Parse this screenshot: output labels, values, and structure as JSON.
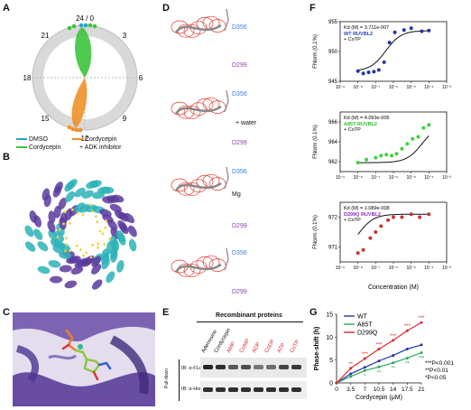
{
  "panels": {
    "A": "A",
    "B": "B",
    "C": "C",
    "D": "D",
    "E": "E",
    "F": "F",
    "G": "G"
  },
  "panelA": {
    "clock_labels": [
      "24 / 0",
      "3",
      "6",
      "9",
      "12",
      "15",
      "18",
      "21"
    ],
    "legend": [
      {
        "label": "DMSO",
        "color": "#29a3c9"
      },
      {
        "label": "Cordycepin",
        "color": "#3cc43c"
      },
      {
        "label": "Cordycepin",
        "color": "#f0902a"
      },
      {
        "label": "+ ADK inhibitor",
        "color": ""
      }
    ]
  },
  "panelD": {
    "labels": [
      "D356",
      "D299",
      "D356",
      "water",
      "D299",
      "D356",
      "Mg",
      "D299",
      "D356",
      "D299"
    ]
  },
  "panelE": {
    "title": "Recombinant proteins",
    "lanes": [
      "Adenosine",
      "Cordycepin",
      "AMP",
      "CoMP",
      "ADP",
      "CoDP",
      "ATP",
      "CoTP"
    ],
    "lane_colors": [
      "#111111",
      "#111111",
      "#d62b2b",
      "#d62b2b",
      "#d62b2b",
      "#d62b2b",
      "#d62b2b",
      "#d62b2b"
    ],
    "row_labels": [
      "IB: α-FLAG",
      "IB: α-His"
    ],
    "side_label": "Pull-down"
  },
  "panelF": {
    "plots": [
      {
        "kd": "Kd (M) = 3.711e-007",
        "name": "WT RUVBL2",
        "name_color": "#2b3fbf",
        "cond": "+ CoTP",
        "ylim": [
          945,
          955
        ],
        "yticks": [
          "955",
          "950",
          "945"
        ],
        "points": [
          [
            1e-08,
            946.7
          ],
          [
            2e-08,
            946.3
          ],
          [
            4e-08,
            946.5
          ],
          [
            8e-08,
            946.6
          ],
          [
            1.5e-07,
            946.9
          ],
          [
            3e-07,
            948.2
          ],
          [
            6e-07,
            951.5
          ],
          [
            1.2e-06,
            953.2
          ],
          [
            4e-06,
            953.6
          ],
          [
            1e-05,
            953.9
          ],
          [
            4e-05,
            953.4
          ],
          [
            0.0001,
            953.5
          ]
        ],
        "color": "#2436a8"
      },
      {
        "kd": "Kd (M) = 4.093e-005",
        "name": "A85T RUVBL2",
        "name_color": "#2bbf2b",
        "cond": "+ CoTP",
        "ylim": [
          961,
          967
        ],
        "yticks": [
          "966",
          "964",
          "962"
        ],
        "points": [
          [
            1e-08,
            961.9
          ],
          [
            3e-08,
            962.2
          ],
          [
            1e-07,
            962.4
          ],
          [
            2e-07,
            962.6
          ],
          [
            4e-07,
            962.7
          ],
          [
            8e-07,
            962.6
          ],
          [
            1.5e-06,
            962.8
          ],
          [
            3e-06,
            963.3
          ],
          [
            6e-06,
            963.8
          ],
          [
            1.2e-05,
            964.3
          ],
          [
            2.5e-05,
            964.5
          ],
          [
            5e-05,
            965.4
          ],
          [
            0.0001,
            965.7
          ]
        ],
        "color": "#3cd03c"
      },
      {
        "kd": "Kd (M) = 1.089e-008",
        "name": "D299Q RUVBL2",
        "name_color": "#8a2bbf",
        "cond": "+ CoTP",
        "ylim": [
          970.5,
          972.5
        ],
        "yticks": [
          "972",
          "971"
        ],
        "points": [
          [
            1e-08,
            970.8
          ],
          [
            2e-08,
            970.9
          ],
          [
            5e-08,
            971.3
          ],
          [
            1e-07,
            971.5
          ],
          [
            2e-07,
            971.7
          ],
          [
            5e-07,
            971.9
          ],
          [
            1e-06,
            972.0
          ],
          [
            3e-06,
            972.0
          ],
          [
            1e-05,
            972.1
          ],
          [
            3e-05,
            972.0
          ],
          [
            0.0001,
            972.1
          ]
        ],
        "color": "#c0392b"
      }
    ],
    "ylabel": "FNorm (0.1%)",
    "xlabel": "Concentration (M)",
    "xticks": [
      "10⁻⁹",
      "10⁻⁸",
      "10⁻⁷",
      "10⁻⁶",
      "10⁻⁵",
      "10⁻⁴",
      "10⁻³"
    ]
  },
  "chart_data": {
    "type": "line",
    "x": [
      0,
      3.5,
      7.0,
      10.5,
      14,
      17.5,
      21
    ],
    "xlabel": "Cordycepin (μM)",
    "ylabel": "Phase-shift (h)",
    "ylim": [
      0,
      15
    ],
    "yticks": [
      0,
      5,
      10,
      15
    ],
    "series": [
      {
        "name": "WT",
        "color": "#2436a8",
        "values": [
          0,
          2.0,
          3.4,
          4.8,
          6.0,
          7.4,
          8.3
        ]
      },
      {
        "name": "A85T",
        "color": "#2aa85a",
        "values": [
          0,
          1.4,
          2.7,
          3.5,
          4.4,
          5.4,
          6.6
        ]
      },
      {
        "name": "D299Q",
        "color": "#d62b2b",
        "values": [
          0,
          3.2,
          5.3,
          7.4,
          9.3,
          11.4,
          13.2
        ]
      }
    ],
    "annotations": [
      {
        "text": "**",
        "x": 3.5,
        "color": "#d62b2b"
      },
      {
        "text": "***",
        "x": 7.0,
        "color": "#d62b2b"
      },
      {
        "text": "***",
        "x": 10.5,
        "color": "#d62b2b"
      },
      {
        "text": "***",
        "x": 14,
        "color": "#d62b2b"
      },
      {
        "text": "***",
        "x": 17.5,
        "color": "#d62b2b"
      },
      {
        "text": "***",
        "x": 21,
        "color": "#d62b2b"
      },
      {
        "text": "*",
        "x": 7.0,
        "color": "#2aa85a"
      },
      {
        "text": "**",
        "x": 10.5,
        "color": "#2aa85a"
      },
      {
        "text": "**",
        "x": 14,
        "color": "#2aa85a"
      },
      {
        "text": "**",
        "x": 17.5,
        "color": "#2aa85a"
      },
      {
        "text": "***",
        "x": 21,
        "color": "#2aa85a"
      }
    ],
    "significance": [
      "***P<0.001",
      "**P<0.01",
      "*P<0.05"
    ]
  }
}
